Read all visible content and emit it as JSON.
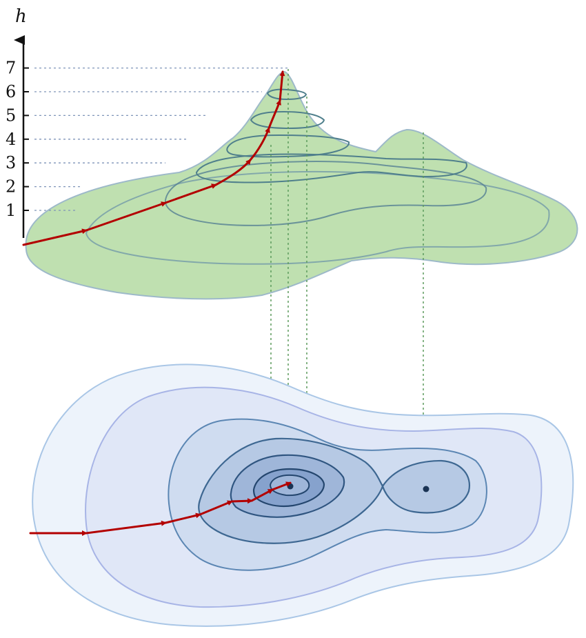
{
  "axis": {
    "label": "h",
    "ticks": [
      "1",
      "2",
      "3",
      "4",
      "5",
      "6",
      "7"
    ]
  },
  "colors": {
    "surface": "#bfe0b0",
    "surface_edge": "#9db9c9",
    "contour_3d": "#4f7f8c",
    "path": "#b30000",
    "guide_line": "#5c9a5c",
    "level_line": "#7d93b8",
    "map_fill": [
      "#edf3fb",
      "#e0e7f7",
      "#cfdcf0",
      "#b6c9e4",
      "#9fb6d9",
      "#86a2cd"
    ],
    "map_stroke": [
      "#a9c6e6",
      "#a7b4e6",
      "#5b86b3",
      "#3d6791",
      "#2f5580",
      "#24466e"
    ],
    "peak_marker": "#1a3354"
  }
}
